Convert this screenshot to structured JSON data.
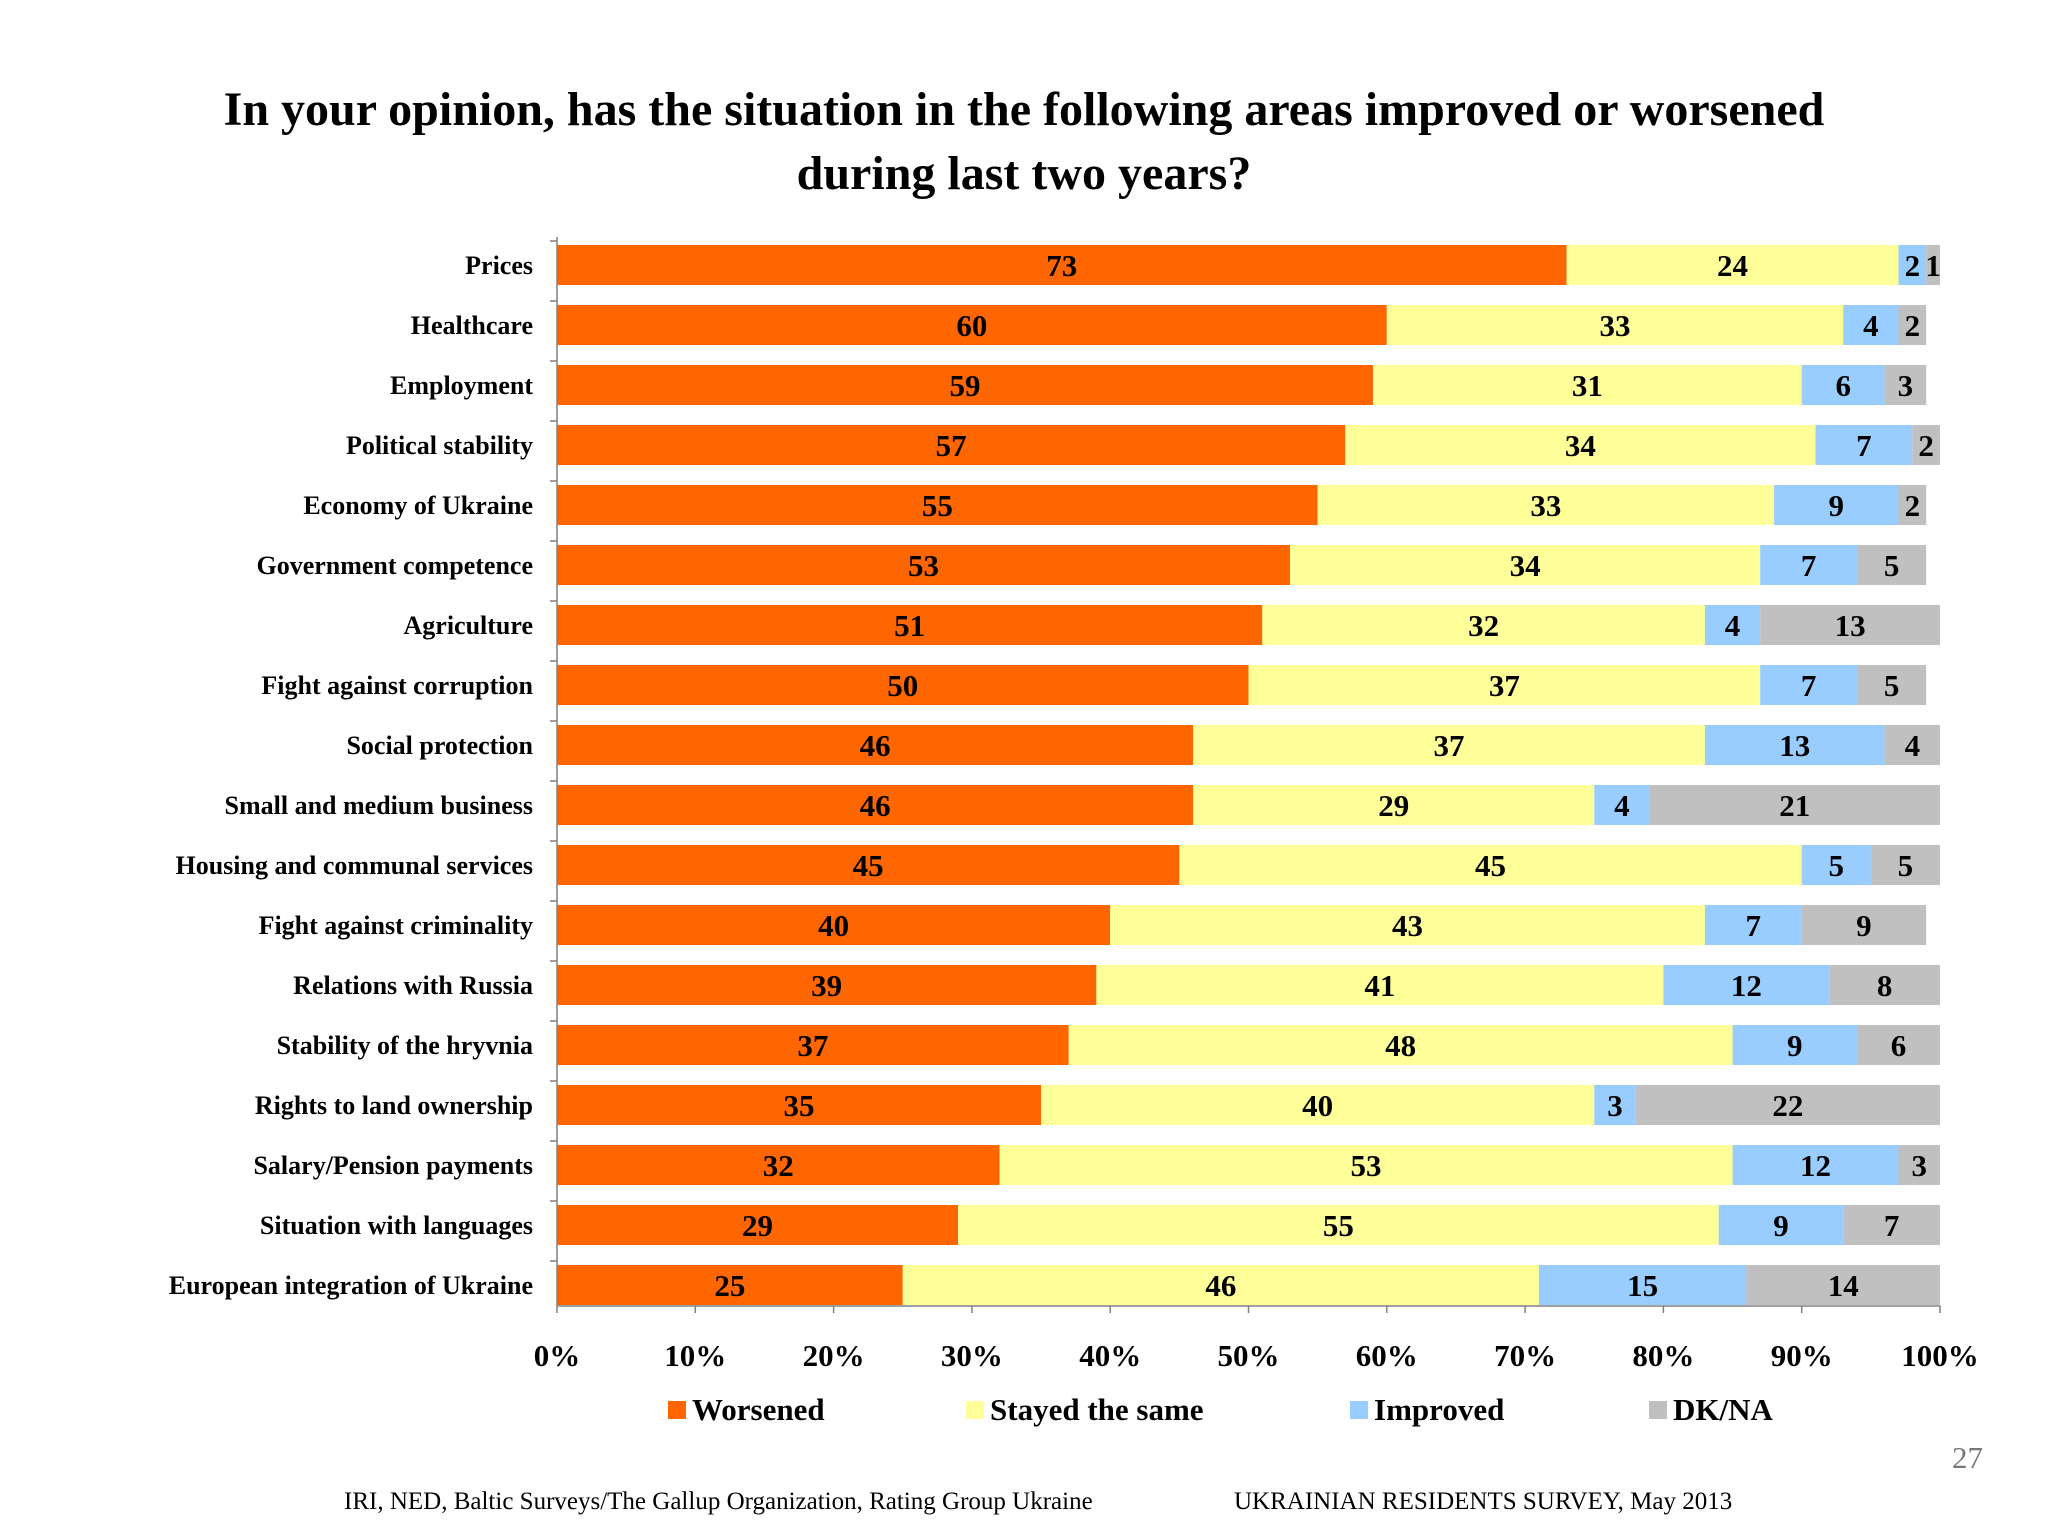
{
  "title_lines": [
    "In your opinion, has the situation in the following areas improved or worsened",
    "during last two years?"
  ],
  "colors": {
    "worsened": "#ff6600",
    "stayed": "#ffff99",
    "improved": "#99ccff",
    "dkna": "#c0c0c0"
  },
  "chart_data": {
    "type": "bar",
    "orientation": "horizontal",
    "stacked": "100%",
    "categories": [
      "Prices",
      "Healthcare",
      "Employment",
      "Political stability",
      "Economy of Ukraine",
      "Government competence",
      "Agriculture",
      "Fight against corruption",
      "Social protection",
      "Small and medium business",
      "Housing and communal services",
      "Fight against criminality",
      "Relations with Russia",
      "Stability of the hryvnia",
      "Rights to land ownership",
      "Salary/Pension payments",
      "Situation with languages",
      "European integration of Ukraine"
    ],
    "series": [
      {
        "name": "Worsened",
        "color_key": "worsened",
        "values": [
          73,
          60,
          59,
          57,
          55,
          53,
          51,
          50,
          46,
          46,
          45,
          40,
          39,
          37,
          35,
          32,
          29,
          25
        ]
      },
      {
        "name": "Stayed the same",
        "color_key": "stayed",
        "values": [
          24,
          33,
          31,
          34,
          33,
          34,
          32,
          37,
          37,
          29,
          45,
          43,
          41,
          48,
          40,
          53,
          55,
          46
        ]
      },
      {
        "name": "Improved",
        "color_key": "improved",
        "values": [
          2,
          4,
          6,
          7,
          9,
          7,
          4,
          7,
          13,
          4,
          5,
          7,
          12,
          9,
          3,
          12,
          9,
          15
        ]
      },
      {
        "name": "DK/NA",
        "color_key": "dkna",
        "values": [
          1,
          2,
          3,
          2,
          2,
          5,
          13,
          5,
          4,
          21,
          5,
          9,
          8,
          6,
          22,
          3,
          7,
          14
        ]
      }
    ],
    "x_ticks": [
      "0%",
      "10%",
      "20%",
      "30%",
      "40%",
      "50%",
      "60%",
      "70%",
      "80%",
      "90%",
      "100%"
    ],
    "xlim": [
      0,
      100
    ],
    "legend_position": "bottom",
    "grid": false
  },
  "page_number": "27",
  "footer": {
    "left": "IRI, NED,  Baltic Surveys/The Gallup Organization, Rating Group Ukraine",
    "right": "UKRAINIAN RESIDENTS SURVEY, May  2013"
  }
}
